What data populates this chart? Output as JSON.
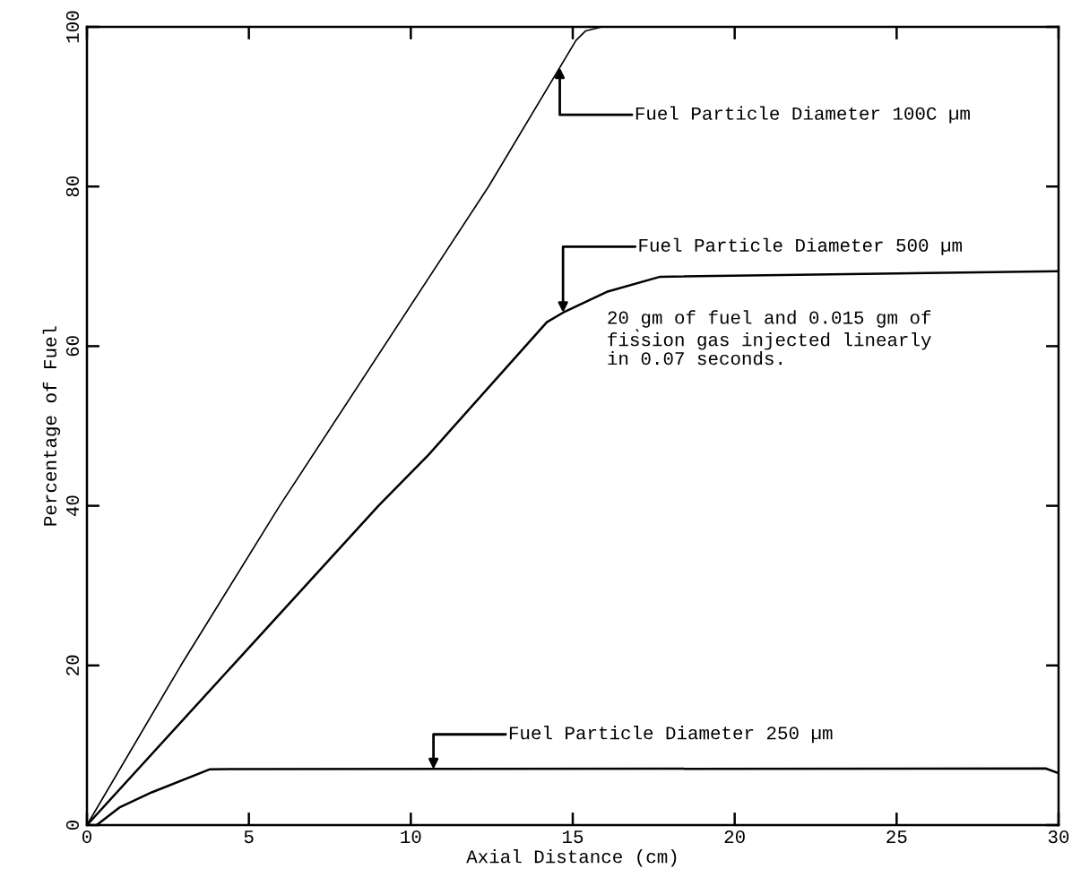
{
  "chart_data": {
    "type": "line",
    "xlabel": "Axial Distance (cm)",
    "ylabel": "Percentage of Fuel",
    "xlim": [
      0,
      30
    ],
    "ylim": [
      0,
      100
    ],
    "xticks": [
      0,
      5,
      10,
      15,
      20,
      25,
      30
    ],
    "yticks": [
      0,
      20,
      40,
      60,
      80,
      100
    ],
    "grid": false,
    "series": [
      {
        "color": "#000000",
        "x": [
          0,
          2.9,
          5.95,
          12.4,
          15.1,
          15.4,
          15.9,
          30
        ],
        "values": [
          0,
          20,
          40,
          80,
          98.3,
          99.5,
          100,
          100
        ]
      },
      {
        "color": "#000000",
        "x": [
          0,
          4.5,
          9.0,
          10.55,
          14.2,
          14.7,
          16.05,
          17.7,
          30
        ],
        "values": [
          0,
          20,
          40,
          46.4,
          63,
          64.2,
          66.8,
          68.7,
          69.4
        ]
      },
      {
        "color": "#000000",
        "x": [
          0.3,
          1,
          2,
          3.8,
          29.6,
          30
        ],
        "values": [
          0,
          2.2,
          4.1,
          7,
          7.1,
          6.5
        ]
      }
    ],
    "annotations": [
      {
        "text": "Fuel Particle Diameter 100C µm",
        "x": 14.6,
        "y": 94.9
      },
      {
        "text": "Fuel Particle Diameter 500 µm",
        "x": 14.7,
        "y": 64.2
      },
      {
        "text": "Fuel Particle Diameter 250 µm",
        "x": 10.7,
        "y": 7
      },
      "20 gm of fuel and 0.015 gm of\nfis̀sion gas injected linearly\nin 0.07 seconds."
    ]
  }
}
